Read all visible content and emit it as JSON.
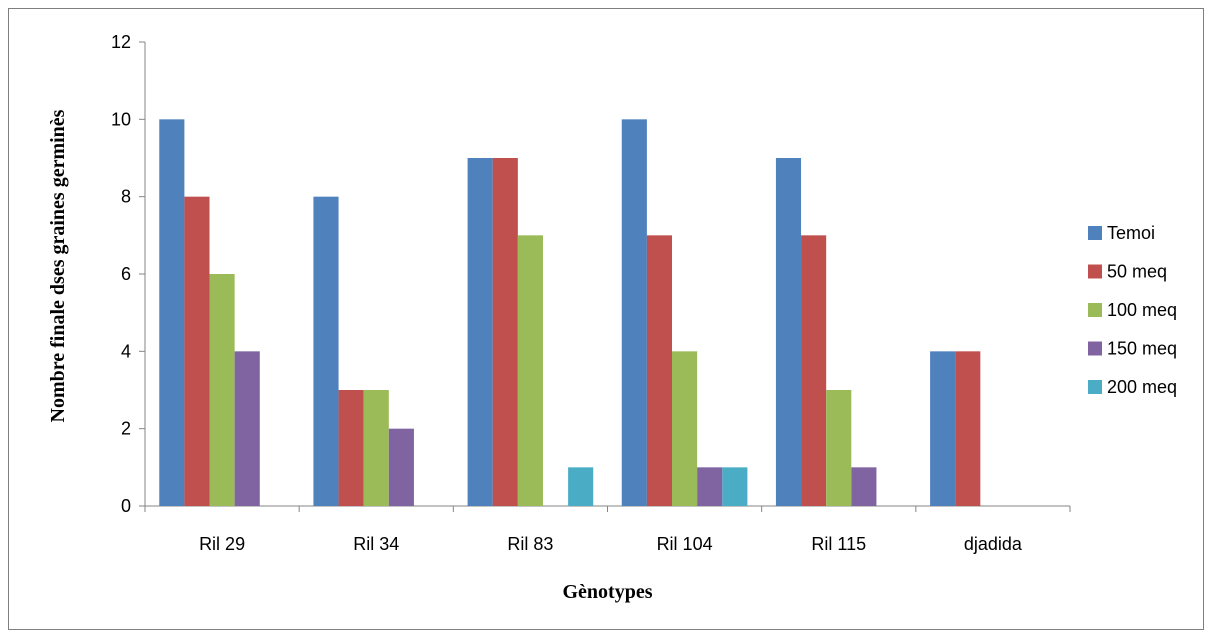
{
  "chart_data": {
    "type": "bar",
    "title": "",
    "xlabel": "Gènotypes",
    "ylabel": "Nombre finale dses graines germinès",
    "ylim": [
      0,
      12
    ],
    "yticks": [
      0,
      2,
      4,
      6,
      8,
      10,
      12
    ],
    "grid": false,
    "legend_position": "right",
    "categories": [
      "Ril 29",
      "Ril 34",
      "Ril 83",
      "Ril 104",
      "Ril 115",
      "djadida"
    ],
    "series": [
      {
        "name": "Temoi",
        "color": "#4F81BD",
        "values": [
          10,
          8,
          9,
          10,
          9,
          4
        ]
      },
      {
        "name": "50 meq",
        "color": "#C0504D",
        "values": [
          8,
          3,
          9,
          7,
          7,
          4
        ]
      },
      {
        "name": "100 meq",
        "color": "#9BBB59",
        "values": [
          6,
          3,
          7,
          4,
          3,
          0
        ]
      },
      {
        "name": "150 meq",
        "color": "#8064A2",
        "values": [
          4,
          2,
          0,
          1,
          1,
          0
        ]
      },
      {
        "name": "200 meq",
        "color": "#4BACC6",
        "values": [
          0,
          0,
          1,
          1,
          0,
          0
        ]
      }
    ]
  }
}
